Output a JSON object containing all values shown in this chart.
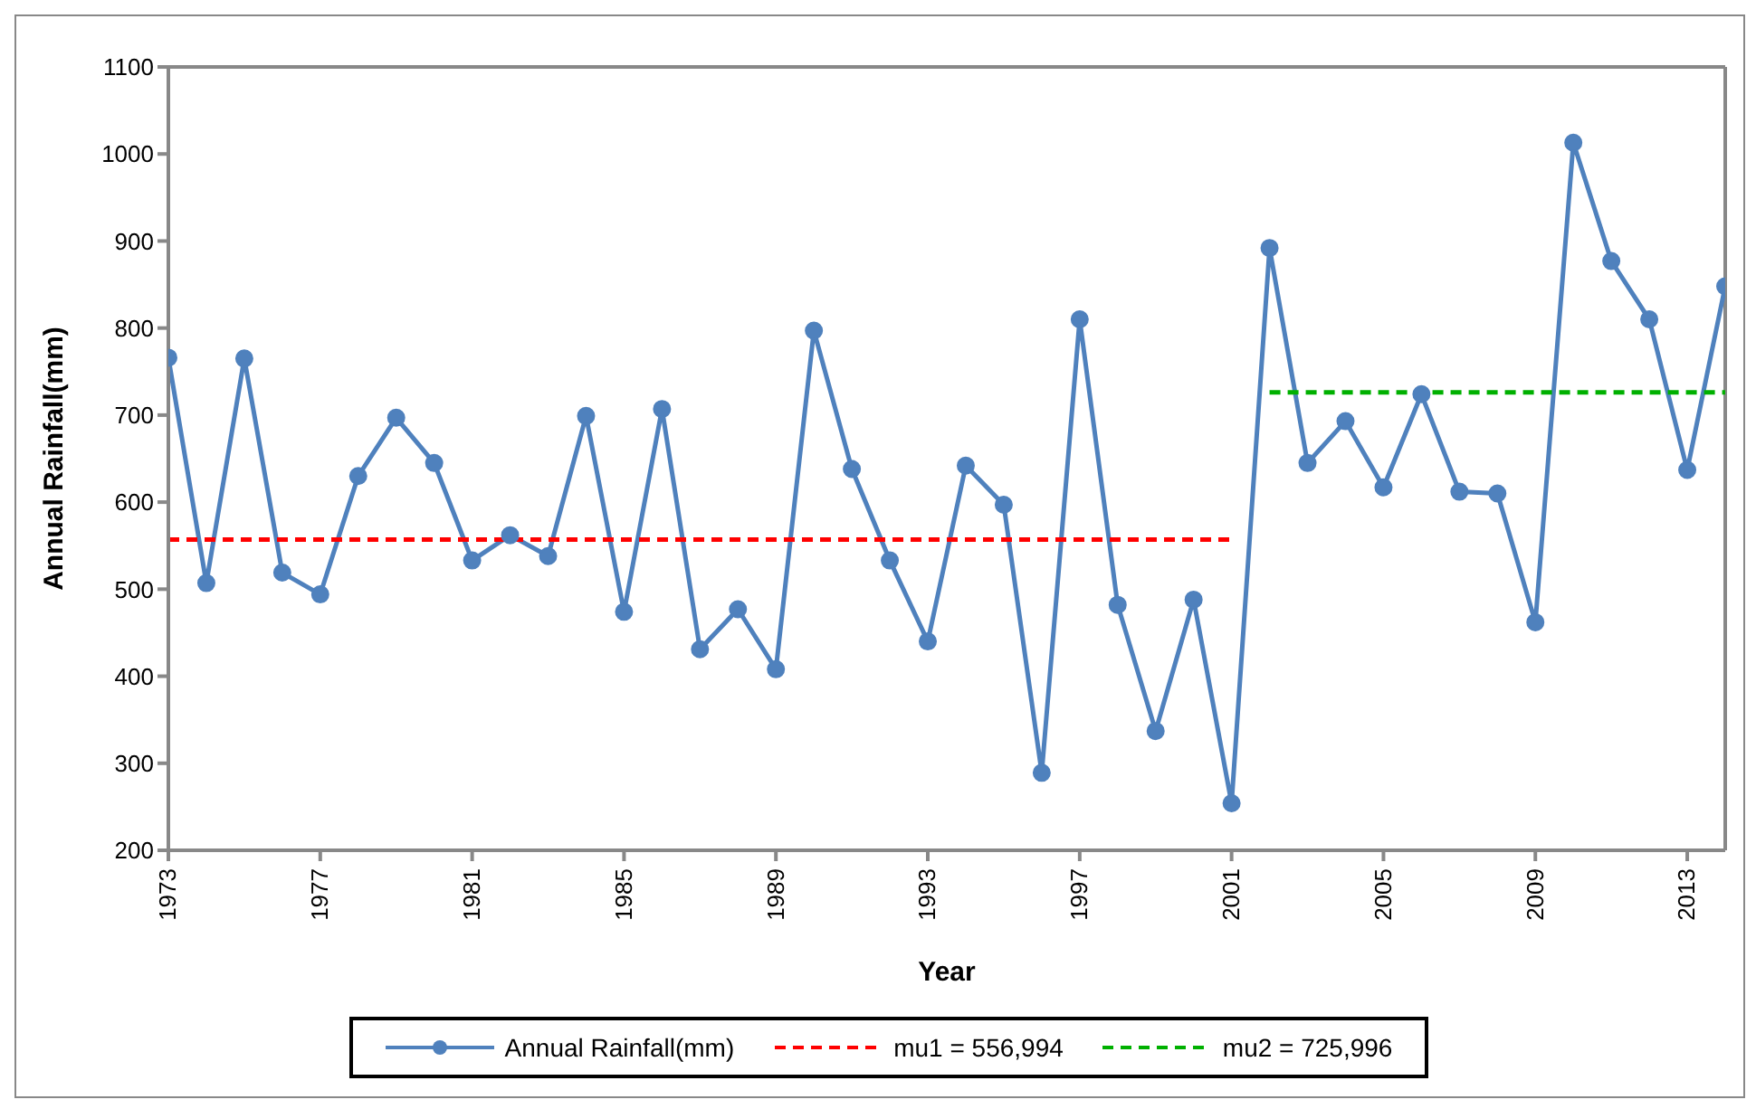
{
  "chart_data": {
    "type": "line",
    "xlabel": "Year",
    "ylabel": "Annual Rainfall(mm)",
    "xlim": [
      1973,
      2014
    ],
    "xticks": [
      1973,
      1977,
      1981,
      1985,
      1989,
      1993,
      1997,
      2001,
      2005,
      2009,
      2013
    ],
    "ylim": [
      200,
      1100
    ],
    "yticks": [
      200,
      300,
      400,
      500,
      600,
      700,
      800,
      900,
      1000,
      1100
    ],
    "grid": false,
    "legend": "bottom",
    "series": [
      {
        "name": "Annual Rainfall(mm)",
        "color": "#4f81bd",
        "marker": "circle",
        "line_style": "solid",
        "x": [
          1973,
          1974,
          1975,
          1976,
          1977,
          1978,
          1979,
          1980,
          1981,
          1982,
          1983,
          1984,
          1985,
          1986,
          1987,
          1988,
          1989,
          1990,
          1991,
          1992,
          1993,
          1994,
          1995,
          1996,
          1997,
          1998,
          1999,
          2000,
          2001,
          2002,
          2003,
          2004,
          2005,
          2006,
          2007,
          2008,
          2009,
          2010,
          2011,
          2012,
          2013,
          2014
        ],
        "values": [
          766,
          507,
          765,
          519,
          494,
          630,
          697,
          645,
          533,
          562,
          538,
          699,
          474,
          707,
          431,
          477,
          408,
          797,
          638,
          533,
          440,
          642,
          597,
          289,
          810,
          482,
          337,
          488,
          254,
          892,
          645,
          693,
          617,
          724,
          612,
          610,
          462,
          1013,
          877,
          810,
          637,
          848
        ]
      },
      {
        "name": "mu1 = 556,994",
        "color": "#ff0000",
        "marker": "none",
        "line_style": "dashed",
        "x": [
          1973,
          2001
        ],
        "values": [
          556.994,
          556.994
        ]
      },
      {
        "name": "mu2 = 725,996",
        "color": "#00b000",
        "marker": "none",
        "line_style": "dashed",
        "x": [
          2002,
          2014
        ],
        "values": [
          725.996,
          725.996
        ]
      }
    ]
  }
}
